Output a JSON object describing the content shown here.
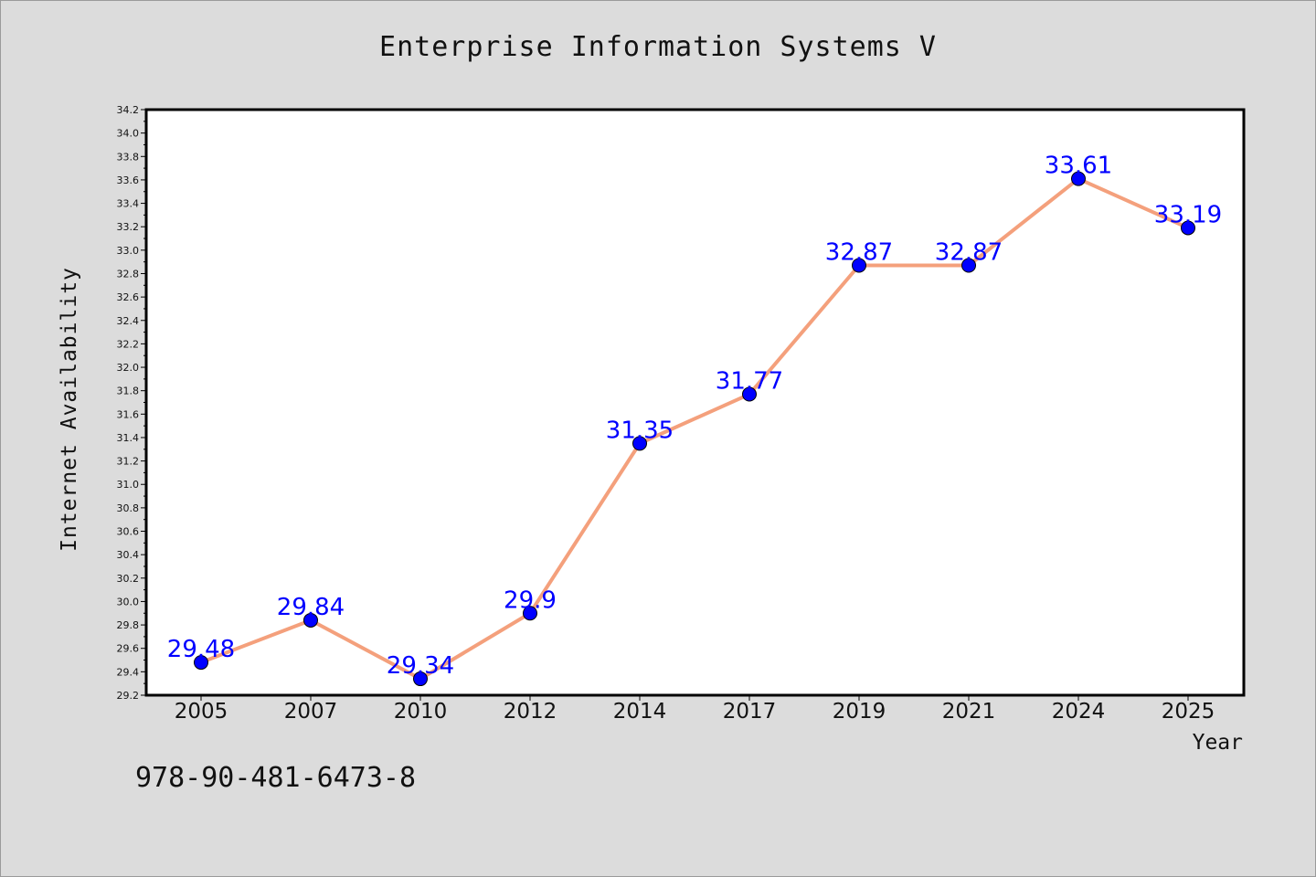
{
  "chart_data": {
    "type": "line",
    "title": "Enterprise Information Systems V",
    "xlabel": "Year",
    "ylabel": "Internet Availability",
    "categories": [
      "2005",
      "2007",
      "2010",
      "2012",
      "2014",
      "2017",
      "2019",
      "2021",
      "2024",
      "2025"
    ],
    "values": [
      29.48,
      29.84,
      29.34,
      29.9,
      31.35,
      31.77,
      32.87,
      32.87,
      33.61,
      33.19
    ],
    "data_labels": [
      "29.48",
      "29.84",
      "29.34",
      "29.9",
      "31.35",
      "31.77",
      "32.87",
      "32.87",
      "33.61",
      "33.19"
    ],
    "ylim": [
      29.2,
      34.2
    ],
    "ytick_step": 0.2,
    "grid": false,
    "legend": false,
    "colors": {
      "line": "#f4a07c",
      "marker": "#0000ff",
      "data_label": "#0000ff",
      "background": "#dcdcdc",
      "plot_background": "#ffffff"
    }
  },
  "footer_text": "978-90-481-6473-8"
}
